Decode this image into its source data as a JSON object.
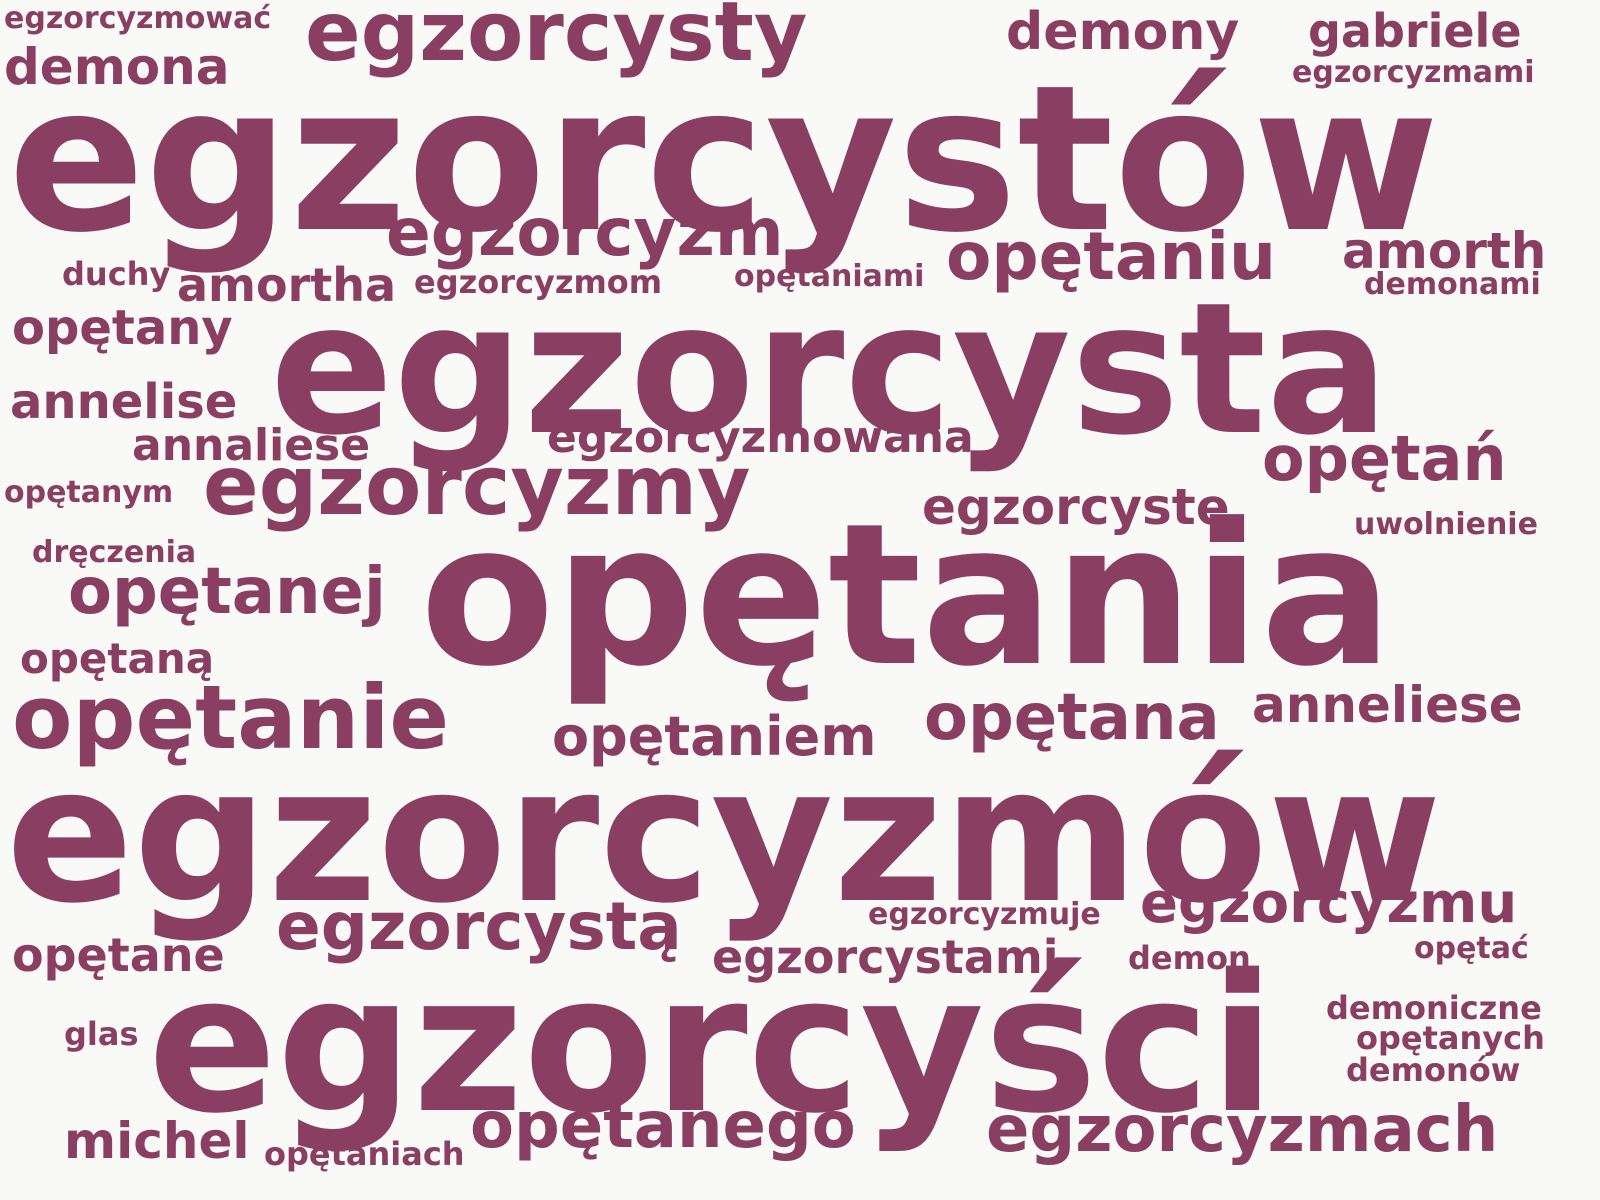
{
  "cloud": {
    "color": "#8a3e62",
    "background": "#f9f9f7",
    "words": [
      "egzorcystów",
      "egzorcysta",
      "opętania",
      "egzorcyzmów",
      "egzorcyści",
      "egzorcysty",
      "egzorcyzm",
      "opętaniu",
      "egzorcyzmy",
      "opętanie",
      "opętanej",
      "opętana",
      "opętaniem",
      "egzorcystą",
      "opętanego",
      "egzorcyzmach",
      "egzorcyzmu",
      "opętań",
      "demony",
      "gabriele",
      "demona",
      "amorth",
      "amortha",
      "opętany",
      "annelise",
      "annaliese",
      "egzorcyzmowana",
      "egzorcystę",
      "anneliese",
      "opętaną",
      "opętane",
      "egzorcystami",
      "michel",
      "egzorcyzmować",
      "egzorcyzmami",
      "duchy",
      "egzorcyzmom",
      "opętaniami",
      "demonami",
      "opętanym",
      "uwolnienie",
      "dręczenia",
      "egzorcyzmuje",
      "demon",
      "opętać",
      "demoniczne",
      "opętanych",
      "demonów",
      "glas",
      "opętaniach"
    ]
  }
}
